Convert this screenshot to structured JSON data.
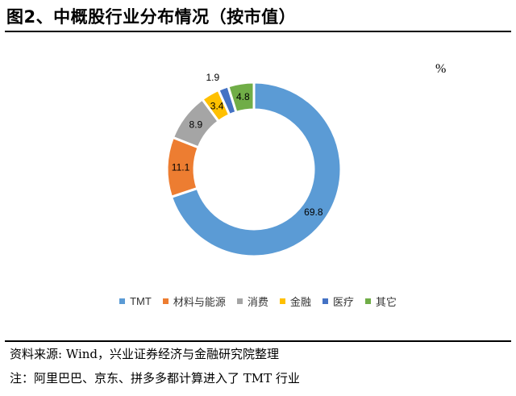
{
  "figure": {
    "title": "图2、中概股行业分布情况（按市值）",
    "unit": "%",
    "source": "资料来源: Wind，兴业证券经济与金融研究院整理",
    "note": "注：阿里巴巴、京东、拼多多都计算进入了 TMT 行业"
  },
  "chart_data": {
    "type": "pie",
    "donut": true,
    "title": "图2、中概股行业分布情况（按市值）",
    "unit": "%",
    "legend_position": "bottom",
    "categories": [
      "TMT",
      "材料与能源",
      "消费",
      "金融",
      "医疗",
      "其它"
    ],
    "values": [
      69.8,
      11.1,
      8.9,
      3.4,
      1.9,
      4.8
    ],
    "data_labels": [
      "69.8",
      "11.1",
      "8.9",
      "3.4",
      "1.9",
      "4.8"
    ],
    "colors": [
      "#5B9BD5",
      "#ED7D31",
      "#A5A5A5",
      "#FFC000",
      "#4472C4",
      "#70AD47"
    ]
  }
}
